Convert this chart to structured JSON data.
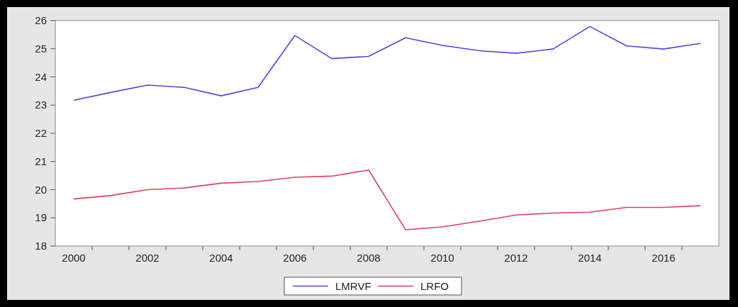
{
  "chart_data": {
    "type": "line",
    "x": [
      2000,
      2001,
      2002,
      2003,
      2004,
      2005,
      2006,
      2007,
      2008,
      2009,
      2010,
      2011,
      2012,
      2013,
      2014,
      2015,
      2016,
      2017
    ],
    "series": [
      {
        "name": "LMRVF",
        "color": "#4a4adc",
        "values": [
          23.17,
          23.45,
          23.71,
          23.63,
          23.33,
          23.63,
          25.47,
          24.65,
          24.73,
          25.39,
          25.12,
          24.93,
          24.84,
          24.99,
          25.79,
          25.1,
          24.99,
          25.19
        ]
      },
      {
        "name": "LRFO",
        "color": "#e0405a",
        "values": [
          19.67,
          19.79,
          20.0,
          20.06,
          20.23,
          20.29,
          20.44,
          20.48,
          20.7,
          18.58,
          18.68,
          18.88,
          19.1,
          19.17,
          19.2,
          19.37,
          19.37,
          19.43
        ]
      }
    ],
    "xlim": [
      1999.5,
      2017.5
    ],
    "xticks": [
      2000,
      2002,
      2004,
      2006,
      2008,
      2010,
      2012,
      2014,
      2016,
      {
        "value": 2000.5,
        "label": null
      },
      {
        "value": 2001.5,
        "label": null
      },
      {
        "value": 2002.5,
        "label": null
      },
      {
        "value": 2003.5,
        "label": null
      },
      {
        "value": 2004.5,
        "label": null
      },
      {
        "value": 2005.5,
        "label": null
      },
      {
        "value": 2006.5,
        "label": null
      },
      {
        "value": 2007.5,
        "label": null
      },
      {
        "value": 2008.5,
        "label": null
      },
      {
        "value": 2009.5,
        "label": null
      },
      {
        "value": 2010.5,
        "label": null
      },
      {
        "value": 2011.5,
        "label": null
      },
      {
        "value": 2012.5,
        "label": null
      },
      {
        "value": 2013.5,
        "label": null
      },
      {
        "value": 2014.5,
        "label": null
      },
      {
        "value": 2015.5,
        "label": null
      },
      {
        "value": 2016.5,
        "label": null
      }
    ],
    "ylim": [
      18,
      26
    ],
    "yticks": [
      18,
      19,
      20,
      21,
      22,
      23,
      24,
      25,
      26
    ],
    "grid": false,
    "legend": "bottom",
    "marker": "none",
    "line_style": "solid"
  }
}
